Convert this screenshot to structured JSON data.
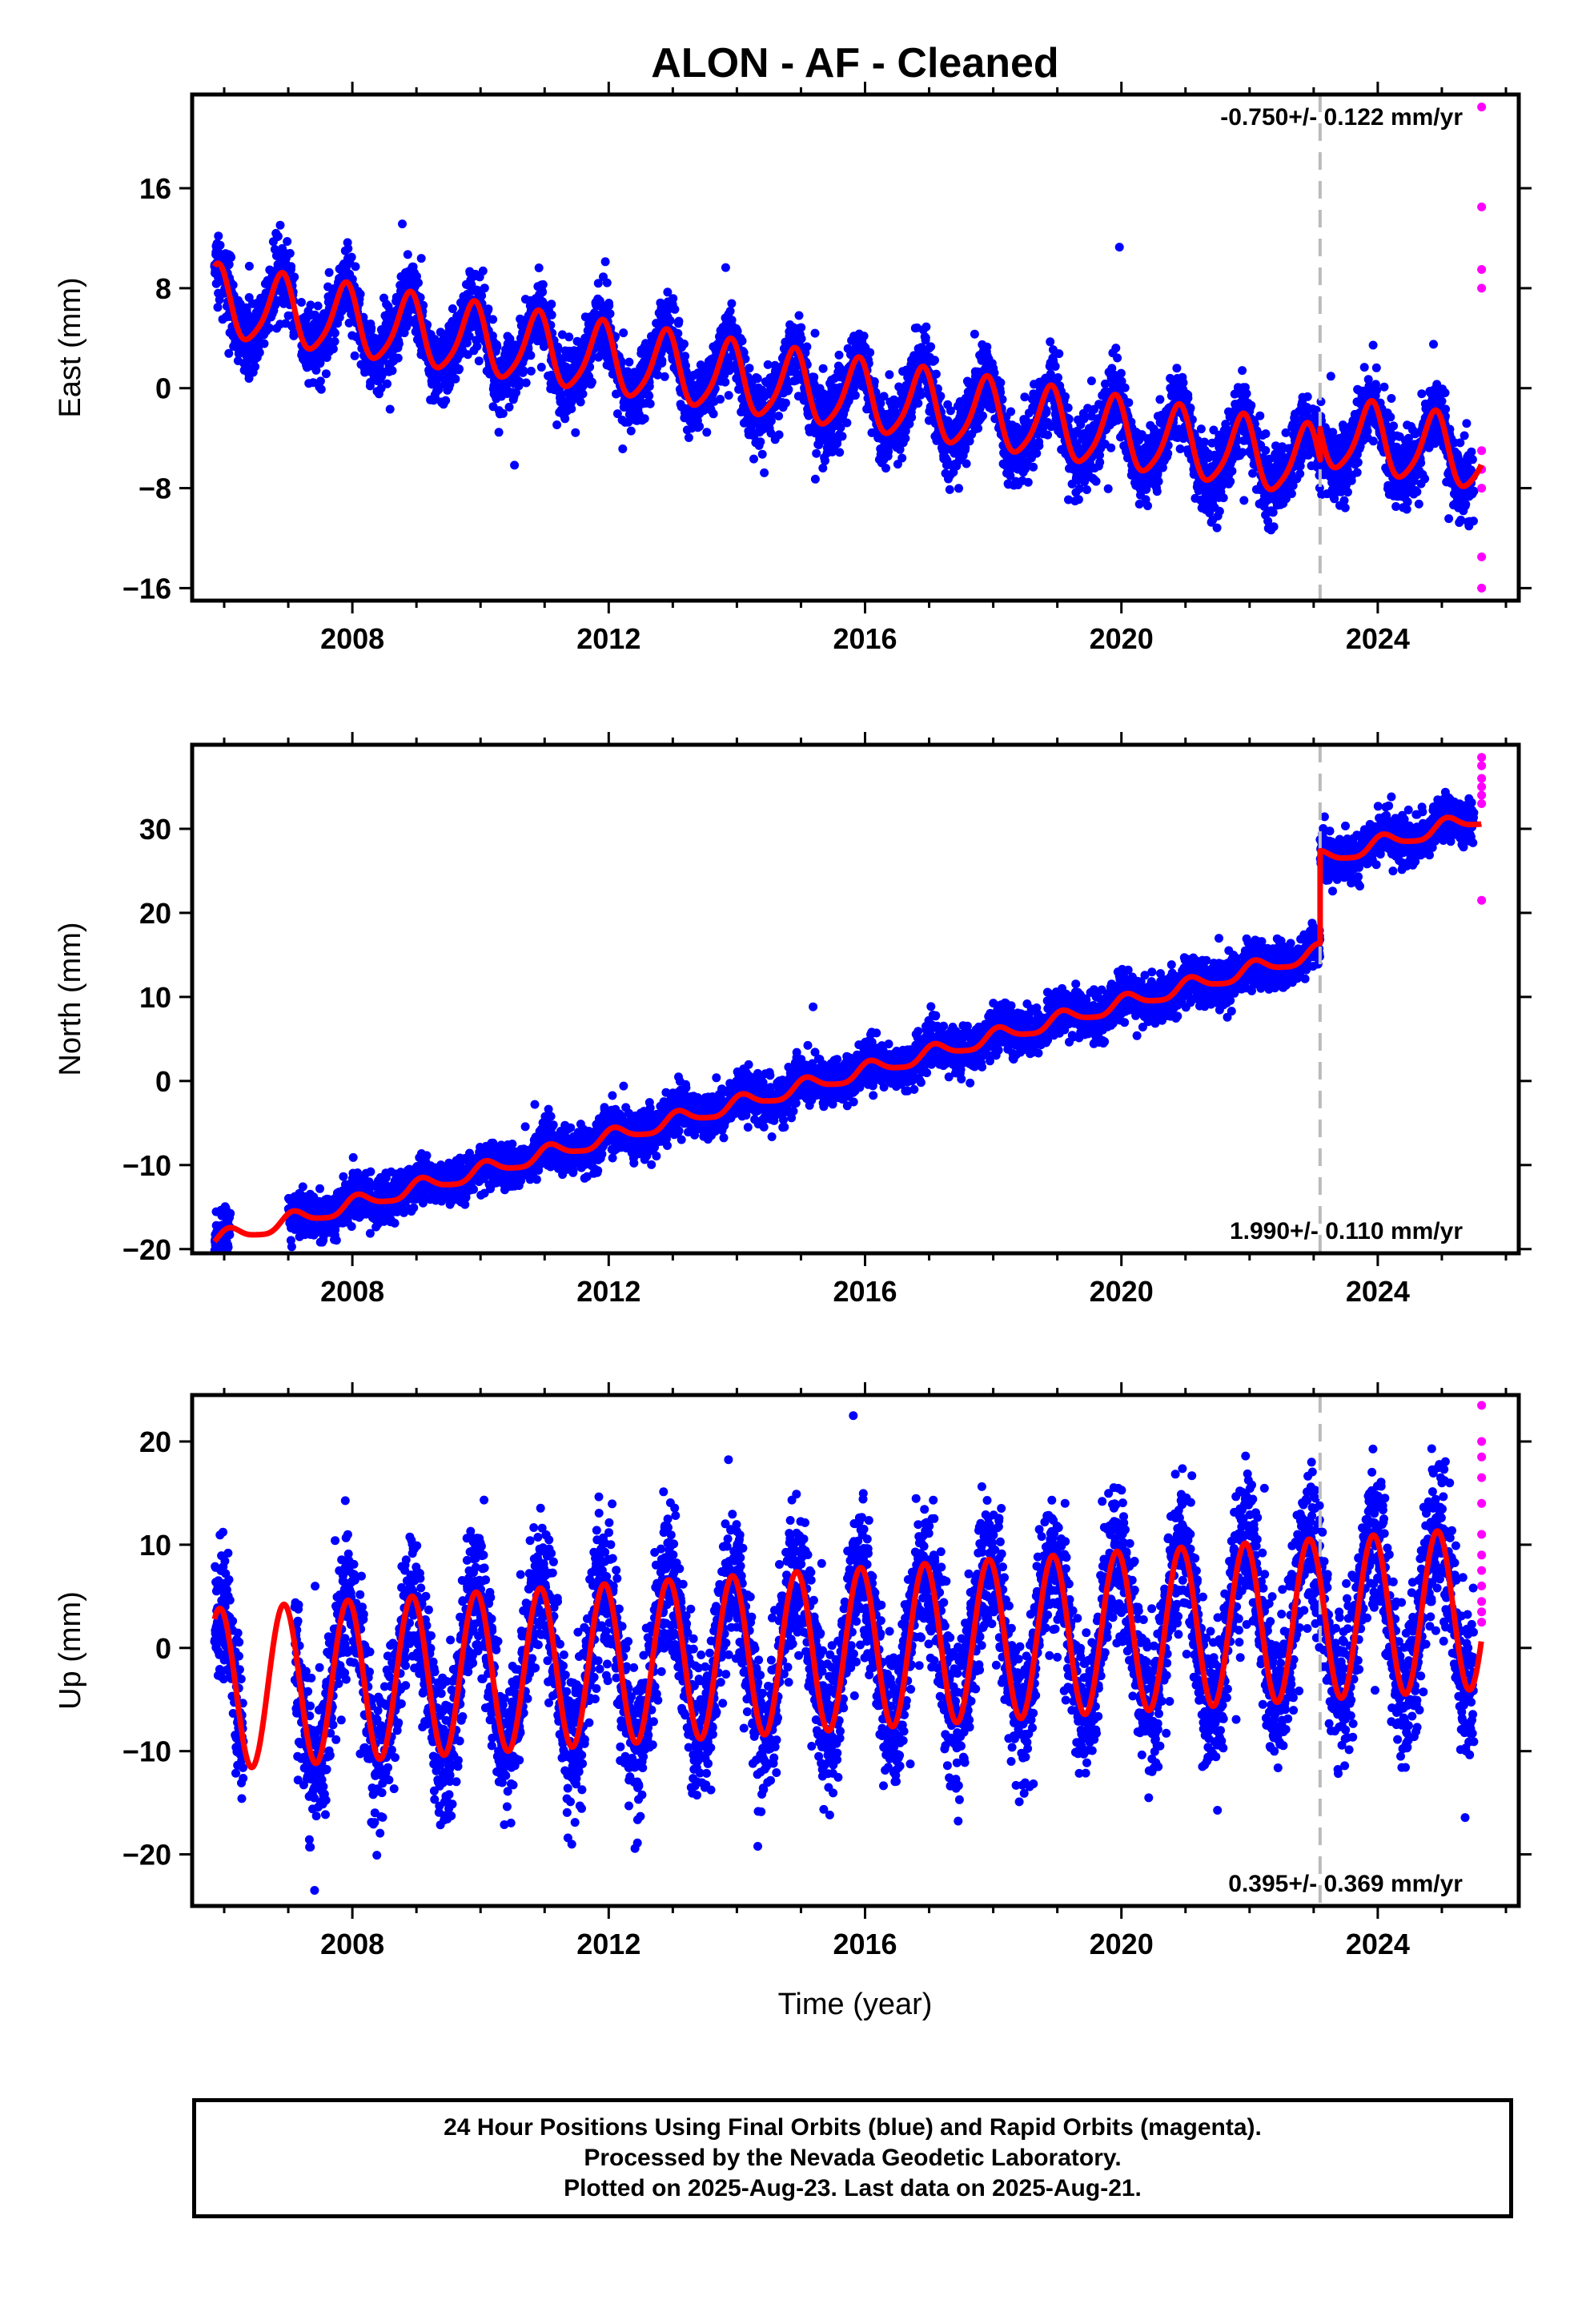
{
  "title": "ALON  - AF - Cleaned",
  "xlabel": "Time (year)",
  "footer": {
    "line1": "24 Hour Positions Using Final Orbits (blue) and Rapid Orbits (magenta).",
    "line2": "Processed by the Nevada Geodetic Laboratory.",
    "line3": "Plotted on 2025-Aug-23. Last data on 2025-Aug-21."
  },
  "colors": {
    "final": "#0000ff",
    "rapid": "#ff00ff",
    "model": "#ff0000",
    "break": "#bbbbbb"
  },
  "chart_data": [
    {
      "type": "scatter",
      "component": "east",
      "ylabel": "East (mm)",
      "rate_label": "-0.750+/- 0.122 mm/yr",
      "rate_position": "top-right",
      "xlim": [
        2005.5,
        2026.2
      ],
      "ylim": [
        -17,
        23.5
      ],
      "xticks": [
        2008,
        2012,
        2016,
        2020,
        2024
      ],
      "xtick_labels": [
        "2008",
        "2012",
        "2016",
        "2020",
        "2024"
      ],
      "yticks": [
        16,
        8,
        0,
        -8,
        -16
      ],
      "ytick_labels": [
        "16",
        "8",
        "0",
        "−8",
        "−16"
      ],
      "data_start": 2005.85,
      "gap": [
        2007.1,
        2007.2
      ],
      "break_epoch": 2023.1,
      "break_offset": 2.5,
      "intercept_2016": -0.8,
      "rate": -0.75,
      "annual_amp": 2.8,
      "annual_phase": 2.3,
      "semiannual_amp": 0.5,
      "noise": 1.4,
      "rapid_values": [
        22.5,
        14.5,
        9.5,
        8.0,
        -5.0,
        -6.5,
        -8.0,
        -13.5,
        -16.0
      ]
    },
    {
      "type": "scatter",
      "component": "north",
      "ylabel": "North (mm)",
      "rate_label": "1.990+/- 0.110 mm/yr",
      "rate_position": "bottom-right",
      "xlim": [
        2005.5,
        2026.2
      ],
      "ylim": [
        -20.5,
        40
      ],
      "xticks": [
        2008,
        2012,
        2016,
        2020,
        2024
      ],
      "xtick_labels": [
        "2008",
        "2012",
        "2016",
        "2020",
        "2024"
      ],
      "yticks": [
        30,
        20,
        10,
        0,
        -10,
        -20
      ],
      "ytick_labels": [
        "30",
        "20",
        "10",
        "0",
        "−10",
        "−20"
      ],
      "data_start": 2005.85,
      "gap": [
        2006.1,
        2007.0
      ],
      "break_epoch": 2023.1,
      "break_offset": 11.0,
      "intercept_2016": 1.2,
      "rate": 1.99,
      "annual_amp": 0.9,
      "annual_phase": 1.0,
      "semiannual_amp": 0.2,
      "noise": 1.3,
      "rapid_values": [
        38.5,
        37.5,
        36.0,
        35.0,
        34.0,
        33.0,
        21.5
      ]
    },
    {
      "type": "scatter",
      "component": "up",
      "ylabel": "Up (mm)",
      "rate_label": "0.395+/- 0.369 mm/yr",
      "rate_position": "bottom-right",
      "xlim": [
        2005.5,
        2026.2
      ],
      "ylim": [
        -25,
        24.5
      ],
      "xticks": [
        2008,
        2012,
        2016,
        2020,
        2024
      ],
      "xtick_labels": [
        "2008",
        "2012",
        "2016",
        "2020",
        "2024"
      ],
      "yticks": [
        20,
        10,
        0,
        -10,
        -20
      ],
      "ytick_labels": [
        "20",
        "10",
        "0",
        "−10",
        "−20"
      ],
      "data_start": 2005.85,
      "gap": [
        2006.3,
        2007.1
      ],
      "break_epoch": 2023.1,
      "break_offset": 0.0,
      "intercept_2016": 0.0,
      "rate": 0.395,
      "annual_amp": 7.8,
      "annual_phase": 2.0,
      "semiannual_amp": 0.0,
      "noise": 3.5,
      "rapid_values": [
        23.5,
        20.0,
        18.5,
        16.5,
        14.0,
        11.0,
        9.0,
        7.5,
        6.0,
        4.5,
        3.5,
        2.5
      ]
    }
  ]
}
